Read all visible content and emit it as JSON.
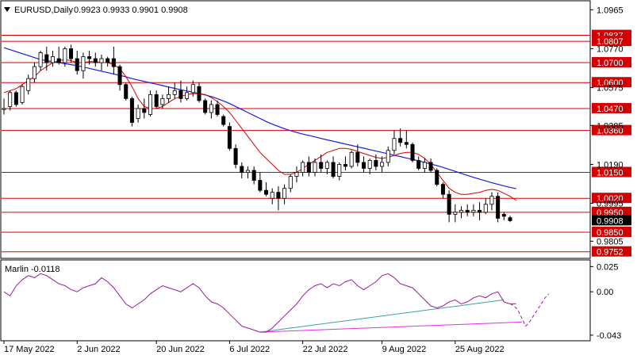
{
  "header": {
    "symbol": "EURUSD,Daily",
    "ohlc": "0.9923 0.9933 0.9901 0.9908"
  },
  "colors": {
    "candle_up": "#ffffff",
    "candle_down": "#000000",
    "level_line": "#d40000",
    "level_label_bg": "#d40000",
    "current_price_bg": "#000000",
    "ma_fast": "#d40000",
    "ma_slow": "#1a1adc",
    "oscillator": "#9b1b9b",
    "trendline_osc": "#3aa3a3",
    "trendline_low": "#dd33dd"
  },
  "chart_data": [
    {
      "type": "candlestick",
      "title": "EURUSD,Daily",
      "ylim": [
        0.9723,
        1.1006
      ],
      "y_ticks": [
        "1.0965",
        "1.0770",
        "1.0575",
        "1.0385",
        "1.0190",
        "0.9995",
        "0.9805"
      ],
      "x_ticks": [
        "17 May 2022",
        "2 Jun 2022",
        "20 Jun 2022",
        "6 Jul 2022",
        "22 Jul 2022",
        "9 Aug 2022",
        "25 Aug 2022"
      ],
      "current_price": "0.9908",
      "levels": [
        {
          "value": 1.0837,
          "label": "1.0837"
        },
        {
          "value": 1.0807,
          "label": "1.0807"
        },
        {
          "value": 1.07,
          "label": "1.0700"
        },
        {
          "value": 1.06,
          "label": "1.0600"
        },
        {
          "value": 1.047,
          "label": "1.0470"
        },
        {
          "value": 1.036,
          "label": "1.0360"
        },
        {
          "value": 1.015,
          "label": "1.0150"
        },
        {
          "value": 1.002,
          "label": "1.0020"
        },
        {
          "value": 0.995,
          "label": "0.9950"
        },
        {
          "value": 0.985,
          "label": "0.9850"
        },
        {
          "value": 0.9752,
          "label": "0.9752"
        }
      ],
      "candles": [
        [
          1.0465,
          1.052,
          1.044,
          1.047
        ],
        [
          1.048,
          1.056,
          1.046,
          1.055
        ],
        [
          1.055,
          1.056,
          1.048,
          1.049
        ],
        [
          1.05,
          1.059,
          1.049,
          1.058
        ],
        [
          1.056,
          1.064,
          1.054,
          1.062
        ],
        [
          1.062,
          1.07,
          1.06,
          1.068
        ],
        [
          1.068,
          1.076,
          1.066,
          1.075
        ],
        [
          1.074,
          1.078,
          1.066,
          1.07
        ],
        [
          1.07,
          1.076,
          1.068,
          1.073
        ],
        [
          1.072,
          1.078,
          1.069,
          1.07
        ],
        [
          1.07,
          1.078,
          1.068,
          1.077
        ],
        [
          1.077,
          1.079,
          1.07,
          1.072
        ],
        [
          1.072,
          1.076,
          1.064,
          1.066
        ],
        [
          1.066,
          1.075,
          1.062,
          1.073
        ],
        [
          1.073,
          1.076,
          1.069,
          1.072
        ],
        [
          1.072,
          1.075,
          1.068,
          1.07
        ],
        [
          1.07,
          1.074,
          1.066,
          1.072
        ],
        [
          1.072,
          1.073,
          1.068,
          1.07
        ],
        [
          1.072,
          1.078,
          1.064,
          1.068
        ],
        [
          1.068,
          1.069,
          1.056,
          1.059
        ],
        [
          1.059,
          1.06,
          1.051,
          1.052
        ],
        [
          1.052,
          1.053,
          1.038,
          1.04
        ],
        [
          1.042,
          1.049,
          1.04,
          1.047
        ],
        [
          1.047,
          1.052,
          1.042,
          1.045
        ],
        [
          1.044,
          1.056,
          1.043,
          1.054
        ],
        [
          1.054,
          1.056,
          1.047,
          1.048
        ],
        [
          1.049,
          1.054,
          1.047,
          1.052
        ],
        [
          1.052,
          1.058,
          1.05,
          1.054
        ],
        [
          1.054,
          1.06,
          1.052,
          1.056
        ],
        [
          1.056,
          1.061,
          1.05,
          1.052
        ],
        [
          1.052,
          1.058,
          1.051,
          1.055
        ],
        [
          1.055,
          1.061,
          1.053,
          1.059
        ],
        [
          1.058,
          1.06,
          1.05,
          1.051
        ],
        [
          1.051,
          1.052,
          1.044,
          1.045
        ],
        [
          1.045,
          1.051,
          1.042,
          1.049
        ],
        [
          1.049,
          1.051,
          1.043,
          1.044
        ],
        [
          1.043,
          1.044,
          1.038,
          1.039
        ],
        [
          1.038,
          1.04,
          1.026,
          1.027
        ],
        [
          1.027,
          1.029,
          1.017,
          1.019
        ],
        [
          1.018,
          1.02,
          1.012,
          1.015
        ],
        [
          1.015,
          1.018,
          1.012,
          1.016
        ],
        [
          1.016,
          1.018,
          1.009,
          1.011
        ],
        [
          1.011,
          1.015,
          1.005,
          1.006
        ],
        [
          1.006,
          1.01,
          1.003,
          1.004
        ],
        [
          1.002,
          1.007,
          0.999,
          1.005
        ],
        [
          1.005,
          1.008,
          0.996,
          1.002
        ],
        [
          1.002,
          1.009,
          0.999,
          1.007
        ],
        [
          1.007,
          1.014,
          1.005,
          1.013
        ],
        [
          1.013,
          1.018,
          1.01,
          1.015
        ],
        [
          1.015,
          1.021,
          1.013,
          1.02
        ],
        [
          1.02,
          1.023,
          1.013,
          1.015
        ],
        [
          1.015,
          1.022,
          1.013,
          1.02
        ],
        [
          1.02,
          1.024,
          1.015,
          1.017
        ],
        [
          1.017,
          1.021,
          1.014,
          1.02
        ],
        [
          1.02,
          1.023,
          1.012,
          1.013
        ],
        [
          1.013,
          1.02,
          1.011,
          1.019
        ],
        [
          1.019,
          1.023,
          1.016,
          1.018
        ],
        [
          1.018,
          1.026,
          1.017,
          1.025
        ],
        [
          1.025,
          1.029,
          1.018,
          1.02
        ],
        [
          1.02,
          1.023,
          1.015,
          1.017
        ],
        [
          1.017,
          1.022,
          1.014,
          1.021
        ],
        [
          1.021,
          1.024,
          1.016,
          1.018
        ],
        [
          1.018,
          1.023,
          1.015,
          1.02
        ],
        [
          1.02,
          1.028,
          1.018,
          1.026
        ],
        [
          1.026,
          1.036,
          1.024,
          1.032
        ],
        [
          1.032,
          1.037,
          1.028,
          1.03
        ],
        [
          1.03,
          1.036,
          1.027,
          1.029
        ],
        [
          1.029,
          1.03,
          1.02,
          1.021
        ],
        [
          1.021,
          1.023,
          1.016,
          1.017
        ],
        [
          1.017,
          1.022,
          1.015,
          1.02
        ],
        [
          1.02,
          1.022,
          1.015,
          1.016
        ],
        [
          1.016,
          1.017,
          1.008,
          1.009
        ],
        [
          1.009,
          1.01,
          1.002,
          1.004
        ],
        [
          1.004,
          1.006,
          0.99,
          0.994
        ],
        [
          0.994,
          0.999,
          0.99,
          0.995
        ],
        [
          0.995,
          0.998,
          0.992,
          0.996
        ],
        [
          0.996,
          0.999,
          0.993,
          0.995
        ],
        [
          0.995,
          0.999,
          0.993,
          0.996
        ],
        [
          0.996,
          1.0,
          0.991,
          0.995
        ],
        [
          0.995,
          1.002,
          0.994,
          0.999
        ],
        [
          0.999,
          1.005,
          0.996,
          1.003
        ],
        [
          1.003,
          1.005,
          0.99,
          0.992
        ],
        [
          0.994,
          0.995,
          0.991,
          0.993
        ],
        [
          0.9923,
          0.9933,
          0.9901,
          0.9908
        ]
      ],
      "ma_fast": [
        1.055,
        1.056,
        1.057,
        1.059,
        1.061,
        1.063,
        1.066,
        1.068,
        1.07,
        1.071,
        1.0715,
        1.071,
        1.07,
        1.07,
        1.0705,
        1.0705,
        1.07,
        1.07,
        1.069,
        1.067,
        1.063,
        1.058,
        1.052,
        1.048,
        1.047,
        1.047,
        1.048,
        1.05,
        1.052,
        1.053,
        1.054,
        1.0545,
        1.0545,
        1.054,
        1.0525,
        1.0505,
        1.048,
        1.045,
        1.041,
        1.037,
        1.033,
        1.029,
        1.025,
        1.022,
        1.019,
        1.016,
        1.014,
        1.014,
        1.015,
        1.017,
        1.019,
        1.021,
        1.023,
        1.025,
        1.026,
        1.027,
        1.027,
        1.0265,
        1.0255,
        1.0245,
        1.0235,
        1.0225,
        1.022,
        1.0225,
        1.0235,
        1.0245,
        1.025,
        1.025,
        1.024,
        1.022,
        1.019,
        1.015,
        1.011,
        1.007,
        1.005,
        1.004,
        1.004,
        1.0045,
        1.005,
        1.006,
        1.0065,
        1.006,
        1.0045,
        1.003,
        1.001
      ],
      "ma_slow": [
        1.0775,
        1.0765,
        1.0755,
        1.0745,
        1.0735,
        1.0725,
        1.0715,
        1.071,
        1.0705,
        1.07,
        1.0695,
        1.069,
        1.0685,
        1.0678,
        1.0671,
        1.0664,
        1.0657,
        1.065,
        1.0643,
        1.0636,
        1.0629,
        1.062,
        1.0613,
        1.0606,
        1.0599,
        1.0592,
        1.0585,
        1.0578,
        1.0571,
        1.0564,
        1.0558,
        1.0552,
        1.0545,
        1.0538,
        1.053,
        1.052,
        1.0508,
        1.0495,
        1.048,
        1.0465,
        1.045,
        1.0435,
        1.042,
        1.0405,
        1.0392,
        1.038,
        1.0369,
        1.0359,
        1.035,
        1.0342,
        1.0335,
        1.0328,
        1.032,
        1.0313,
        1.0306,
        1.0299,
        1.0292,
        1.0285,
        1.0278,
        1.0271,
        1.0264,
        1.0257,
        1.025,
        1.0243,
        1.0236,
        1.0229,
        1.0222,
        1.0215,
        1.0208,
        1.02,
        1.0192,
        1.0184,
        1.0175,
        1.0165,
        1.0155,
        1.0145,
        1.0135,
        1.0125,
        1.0116,
        1.0107,
        1.0098,
        1.009,
        1.0082,
        1.0075,
        1.0068
      ]
    },
    {
      "type": "line",
      "title": "Marlin -0.0118",
      "ylim": [
        -0.047,
        0.03
      ],
      "y_ticks": [
        "0.025",
        "0.00",
        "-0.043"
      ],
      "series": [
        {
          "name": "Marlin",
          "values": [
            0.0,
            -0.004,
            0.006,
            0.012,
            0.016,
            0.014,
            0.018,
            0.016,
            0.012,
            0.008,
            0.006,
            0.002,
            0.0,
            0.004,
            0.006,
            0.008,
            0.014,
            0.01,
            0.004,
            -0.004,
            -0.012,
            -0.016,
            -0.012,
            -0.008,
            -0.002,
            0.002,
            0.006,
            0.004,
            0.002,
            0.0,
            0.004,
            0.008,
            0.004,
            -0.004,
            -0.01,
            -0.012,
            -0.016,
            -0.022,
            -0.028,
            -0.034,
            -0.036,
            -0.038,
            -0.04,
            -0.04,
            -0.036,
            -0.03,
            -0.024,
            -0.018,
            -0.012,
            -0.004,
            0.002,
            0.006,
            0.008,
            0.004,
            0.008,
            0.006,
            0.01,
            0.012,
            0.006,
            0.002,
            0.006,
            0.01,
            0.016,
            0.018,
            0.014,
            0.008,
            0.006,
            0.004,
            -0.002,
            -0.008,
            -0.014,
            -0.016,
            -0.014,
            -0.01,
            -0.008,
            -0.012,
            -0.01,
            -0.006,
            -0.004,
            -0.006,
            -0.002,
            0.0,
            -0.01,
            -0.012,
            -0.0118
          ]
        },
        {
          "name": "projection",
          "values": [
            -0.0118,
            -0.014,
            -0.018,
            -0.026,
            -0.034,
            -0.03,
            -0.024,
            -0.018,
            -0.012,
            -0.006,
            -0.002
          ]
        }
      ]
    }
  ]
}
